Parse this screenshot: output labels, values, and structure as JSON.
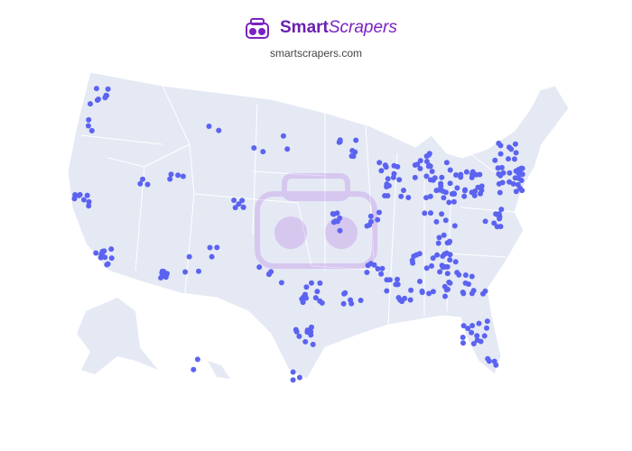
{
  "header": {
    "brand_bold": "Smart",
    "brand_italic": "Scrapers",
    "url": "smartscrapers.com"
  }
}
